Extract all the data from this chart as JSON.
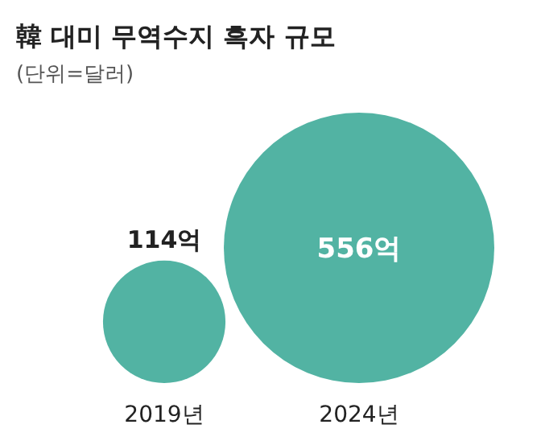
{
  "chart_data": {
    "type": "other",
    "title": "韓 대미 무역수지 흑자 규모",
    "subtitle": "(단위=달러)",
    "categories": [
      "2019년",
      "2024년"
    ],
    "values": [
      114,
      556
    ],
    "value_labels": [
      "114억",
      "556억"
    ],
    "color": "#52b3a3"
  }
}
